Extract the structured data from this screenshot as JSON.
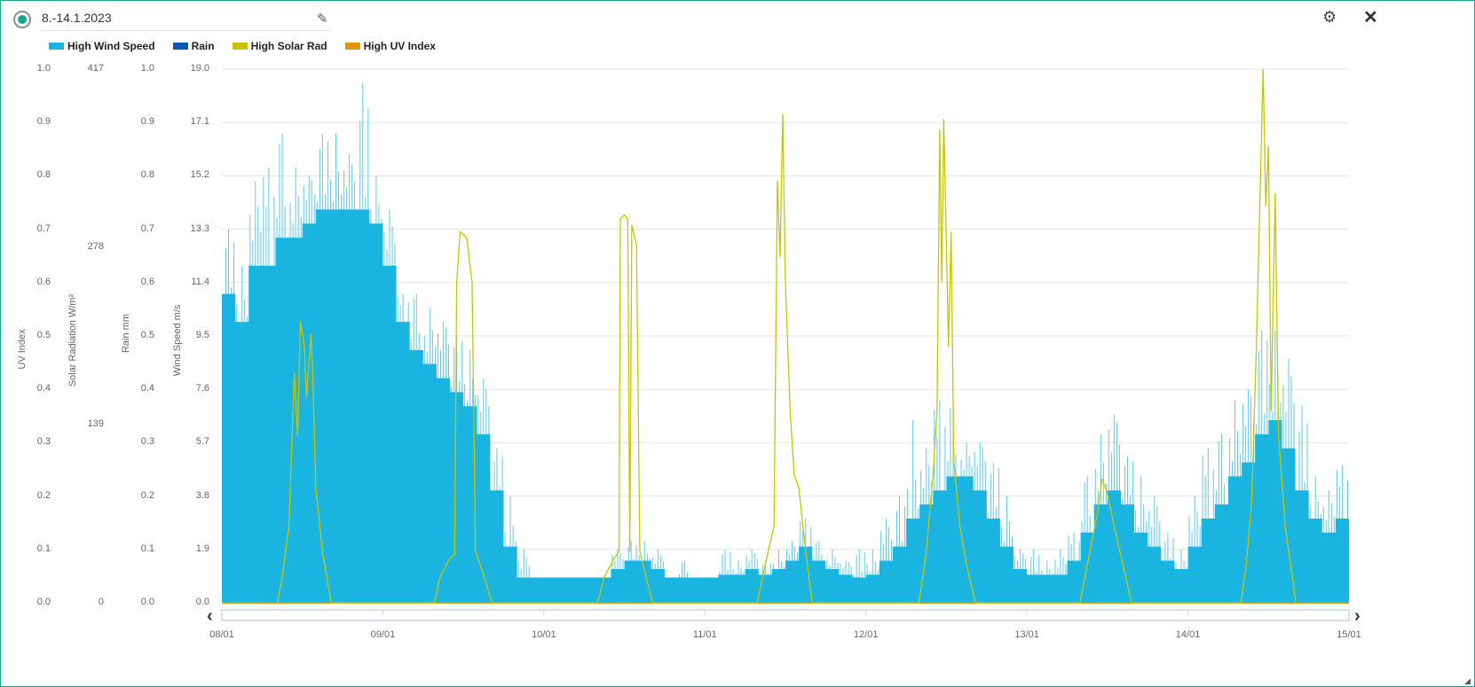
{
  "header": {
    "title": "8.-14.1.2023"
  },
  "icons": {
    "edit": "pencil-icon",
    "settings": "gear-icon",
    "close": "close-icon"
  },
  "colors": {
    "wind": "#1ab4e0",
    "rain": "#0a55b8",
    "solar": "#c9c400",
    "uv": "#e0960a",
    "accent": "#14a98a"
  },
  "chart_data": {
    "type": "area",
    "legend": [
      "High Wind Speed",
      "Rain",
      "High Solar Rad",
      "High UV Index"
    ],
    "legend_position": "top-left",
    "axes": {
      "uv": {
        "label": "UV Index",
        "ticks": [
          "1.0",
          "0.9",
          "0.8",
          "0.7",
          "0.6",
          "0.5",
          "0.4",
          "0.3",
          "0.2",
          "0.1",
          "0.0"
        ],
        "range": [
          0,
          1
        ]
      },
      "solar": {
        "label": "Solar Radiation W/m²",
        "ticks": [
          "417",
          "278",
          "139",
          "0"
        ],
        "range": [
          0,
          417
        ]
      },
      "rain": {
        "label": "Rain mm",
        "ticks": [
          "1.0",
          "0.9",
          "0.8",
          "0.7",
          "0.6",
          "0.5",
          "0.4",
          "0.3",
          "0.2",
          "0.1",
          "0.0"
        ],
        "range": [
          0,
          1
        ]
      },
      "wind": {
        "label": "Wind Speed m/s",
        "ticks": [
          "19.0",
          "17.1",
          "15.2",
          "13.3",
          "11.4",
          "9.5",
          "7.6",
          "5.7",
          "3.8",
          "1.9",
          "0.0"
        ],
        "range": [
          0,
          19
        ]
      },
      "x": {
        "ticks": [
          "08/01",
          "09/01",
          "10/01",
          "11/01",
          "12/01",
          "13/01",
          "14/01",
          "15/01"
        ],
        "range_hours": [
          0,
          168
        ]
      }
    },
    "grid": true,
    "wind_bin_hours": 2,
    "wind_level": [
      11,
      10,
      12,
      12,
      13,
      13,
      13.5,
      14,
      14,
      14,
      14,
      13.5,
      12,
      10,
      9,
      8.5,
      8,
      7.5,
      7,
      6,
      4,
      2,
      0.9,
      0.9,
      0.9,
      0.9,
      0.9,
      0.9,
      0.9,
      1.2,
      1.5,
      1.5,
      1.2,
      0.9,
      0.9,
      0.9,
      0.9,
      1,
      1,
      1.2,
      1,
      1.2,
      1.5,
      2,
      1.5,
      1.2,
      1,
      0.9,
      1,
      1.5,
      2,
      3,
      3.5,
      4,
      4.5,
      4.5,
      4,
      3,
      2,
      1.2,
      1,
      1,
      1,
      1.5,
      2.5,
      3.5,
      4,
      3.5,
      2.5,
      2,
      1.5,
      1.2,
      2,
      3,
      3.5,
      4.5,
      5,
      6,
      6.5,
      5.5,
      4,
      3,
      2.5,
      3
    ],
    "wind_max": [
      13.3,
      12,
      15,
      15.5,
      16.7,
      15.5,
      15.2,
      16.7,
      16.7,
      16,
      18.5,
      15.2,
      14,
      11,
      11,
      10.5,
      10,
      9.5,
      9,
      8,
      5.5,
      3.8,
      1.9,
      0.9,
      0.9,
      0.9,
      0.9,
      0.9,
      0.9,
      1.9,
      2.2,
      2.2,
      1.9,
      0.9,
      1.5,
      0.9,
      0.9,
      1.9,
      1.5,
      1.9,
      1.5,
      1.9,
      2.2,
      3,
      2.2,
      1.9,
      1.5,
      1.9,
      1.9,
      3,
      3.8,
      6.5,
      5.5,
      7.2,
      7.2,
      5.7,
      5.7,
      5,
      3.8,
      1.9,
      1.9,
      1.5,
      1.9,
      2.5,
      4.5,
      6,
      6.7,
      5.2,
      4.5,
      3.8,
      2.5,
      1.9,
      3.8,
      5.5,
      6,
      7.2,
      7.6,
      9.7,
      9.7,
      8.7,
      7,
      4.5,
      4,
      4.9
    ],
    "solar_points": [
      [
        8.3,
        0
      ],
      [
        9,
        20
      ],
      [
        10,
        60
      ],
      [
        10.8,
        180
      ],
      [
        11.3,
        130
      ],
      [
        11.7,
        220
      ],
      [
        12.3,
        200
      ],
      [
        12.6,
        160
      ],
      [
        13.3,
        210
      ],
      [
        13.6,
        170
      ],
      [
        14,
        90
      ],
      [
        15,
        40
      ],
      [
        16.3,
        0
      ],
      [
        31.7,
        0
      ],
      [
        32.5,
        20
      ],
      [
        34,
        35
      ],
      [
        34.7,
        38
      ],
      [
        35,
        250
      ],
      [
        35.5,
        290
      ],
      [
        36.5,
        285
      ],
      [
        37.3,
        250
      ],
      [
        37.8,
        40
      ],
      [
        38.5,
        30
      ],
      [
        40.3,
        0
      ],
      [
        56,
        0
      ],
      [
        57,
        20
      ],
      [
        58.5,
        35
      ],
      [
        59.2,
        40
      ],
      [
        59.4,
        300
      ],
      [
        60,
        303
      ],
      [
        60.5,
        300
      ],
      [
        60.8,
        40
      ],
      [
        61.1,
        295
      ],
      [
        61.8,
        280
      ],
      [
        62.3,
        40
      ],
      [
        63,
        25
      ],
      [
        64.2,
        0
      ],
      [
        79.8,
        0
      ],
      [
        81,
        30
      ],
      [
        82.3,
        60
      ],
      [
        82.8,
        330
      ],
      [
        83.2,
        270
      ],
      [
        83.6,
        382
      ],
      [
        84,
        250
      ],
      [
        84.7,
        150
      ],
      [
        85.3,
        100
      ],
      [
        86,
        90
      ],
      [
        86.6,
        60
      ],
      [
        87.5,
        20
      ],
      [
        88,
        0
      ],
      [
        103.9,
        0
      ],
      [
        105,
        40
      ],
      [
        106,
        100
      ],
      [
        106.6,
        150
      ],
      [
        107,
        370
      ],
      [
        107.3,
        250
      ],
      [
        107.6,
        378
      ],
      [
        108,
        280
      ],
      [
        108.3,
        200
      ],
      [
        108.7,
        290
      ],
      [
        109.1,
        110
      ],
      [
        110,
        60
      ],
      [
        111,
        30
      ],
      [
        112.3,
        0
      ],
      [
        127.9,
        0
      ],
      [
        129,
        30
      ],
      [
        130.5,
        70
      ],
      [
        131.2,
        97
      ],
      [
        132,
        85
      ],
      [
        133,
        60
      ],
      [
        134.3,
        30
      ],
      [
        135.6,
        0
      ],
      [
        151.9,
        0
      ],
      [
        152.7,
        30
      ],
      [
        153.5,
        80
      ],
      [
        154.2,
        200
      ],
      [
        154.8,
        330
      ],
      [
        155.2,
        417
      ],
      [
        155.6,
        310
      ],
      [
        156,
        357
      ],
      [
        156.4,
        150
      ],
      [
        157,
        320
      ],
      [
        157.5,
        130
      ],
      [
        158.5,
        60
      ],
      [
        160.1,
        0
      ]
    ],
    "rain": 0,
    "uv": 0
  }
}
